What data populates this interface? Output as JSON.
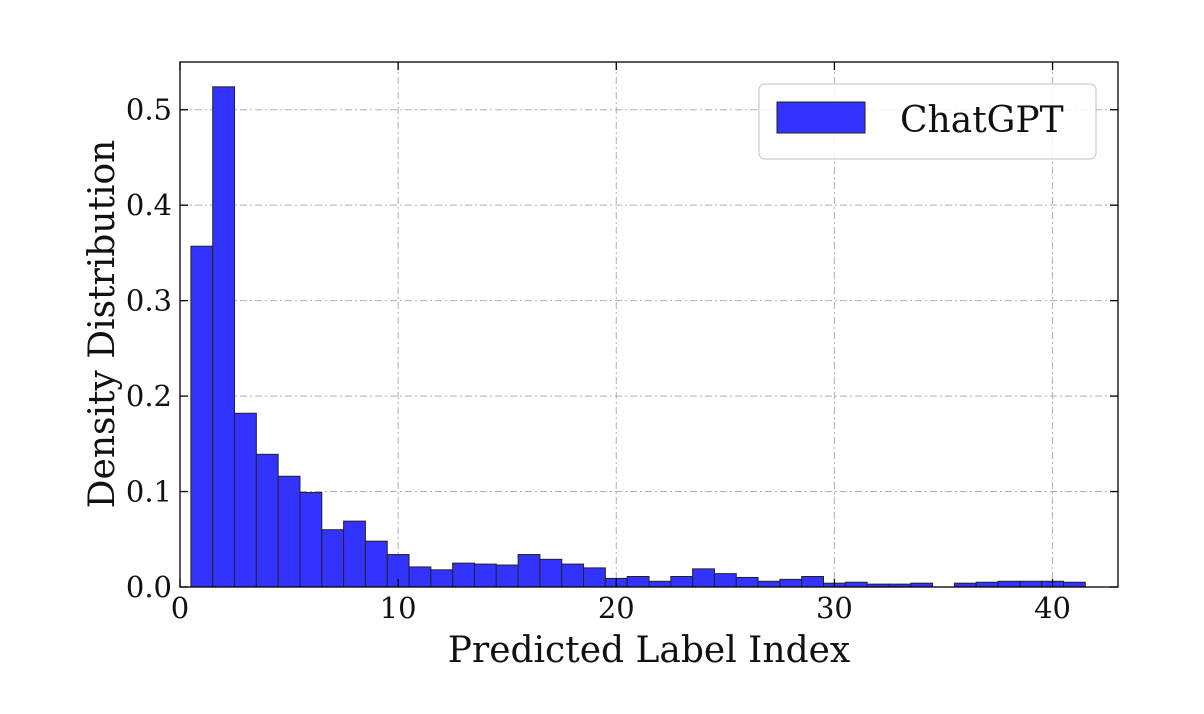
{
  "chart_data": {
    "type": "bar",
    "xlabel": "Predicted Label Index",
    "ylabel": "Density Distribution",
    "xlim": [
      0,
      43
    ],
    "ylim": [
      0,
      0.55
    ],
    "x_ticks": [
      0,
      10,
      20,
      30,
      40
    ],
    "x_tick_labels": [
      "0",
      "10",
      "20",
      "30",
      "40"
    ],
    "y_ticks": [
      0.0,
      0.1,
      0.2,
      0.3,
      0.4,
      0.5
    ],
    "y_tick_labels": [
      "0.0",
      "0.1",
      "0.2",
      "0.3",
      "0.4",
      "0.5"
    ],
    "grid": true,
    "legend_position": "top-right",
    "bin_edges_start": 0.5,
    "bin_width": 1,
    "series": [
      {
        "name": "ChatGPT",
        "color": "#3333ff",
        "values": [
          0.357,
          0.524,
          0.182,
          0.139,
          0.116,
          0.099,
          0.06,
          0.069,
          0.048,
          0.034,
          0.021,
          0.018,
          0.025,
          0.024,
          0.023,
          0.034,
          0.029,
          0.024,
          0.02,
          0.009,
          0.011,
          0.006,
          0.011,
          0.019,
          0.014,
          0.01,
          0.006,
          0.008,
          0.011,
          0.004,
          0.005,
          0.003,
          0.003,
          0.004,
          0.0,
          0.004,
          0.005,
          0.006,
          0.006,
          0.006,
          0.005
        ]
      }
    ]
  }
}
